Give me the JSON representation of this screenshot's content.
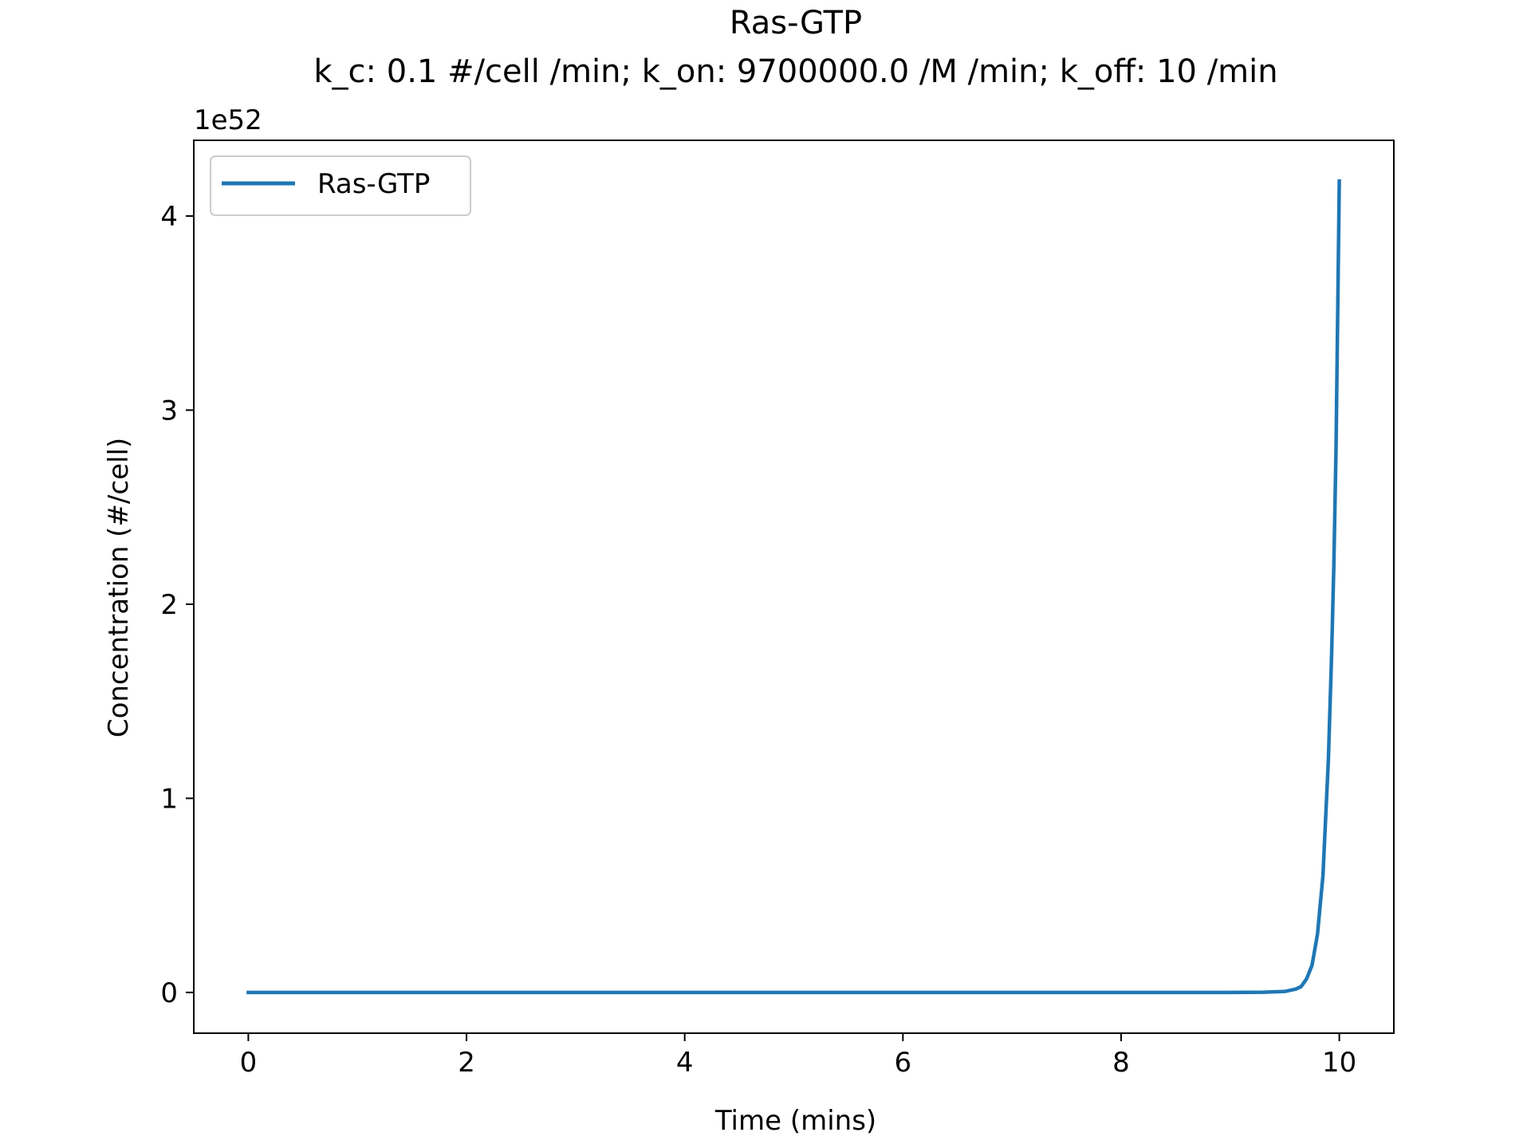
{
  "chart_data": {
    "type": "line",
    "title": "Ras-GTP",
    "subtitle": "k_c: 0.1 #/cell /min; k_on: 9700000.0 /M /min; k_off: 10 /min",
    "xlabel": "Time (mins)",
    "ylabel": "Concentration (#/cell)",
    "y_offset_label": "1e52",
    "xlim": [
      -0.5,
      10.5
    ],
    "ylim": [
      -0.21,
      4.39
    ],
    "x_ticks": [
      0,
      2,
      4,
      6,
      8,
      10
    ],
    "x_tick_labels": [
      "0",
      "2",
      "4",
      "6",
      "8",
      "10"
    ],
    "y_ticks": [
      0,
      1,
      2,
      3,
      4
    ],
    "y_tick_labels": [
      "0",
      "1",
      "2",
      "3",
      "4"
    ],
    "grid": false,
    "legend_position": "top-left",
    "series": [
      {
        "name": "Ras-GTP",
        "color": "#1f77b4",
        "x": [
          0,
          1,
          2,
          3,
          4,
          5,
          6,
          7,
          8,
          9,
          9.3,
          9.5,
          9.6,
          9.65,
          9.7,
          9.75,
          9.8,
          9.85,
          9.9,
          9.93,
          9.95,
          9.97,
          9.98,
          10.0
        ],
        "y": [
          0,
          0,
          0,
          0,
          0,
          0,
          0,
          0,
          0,
          0.0002,
          0.001,
          0.005,
          0.017,
          0.03,
          0.07,
          0.14,
          0.3,
          0.6,
          1.2,
          1.75,
          2.2,
          2.8,
          3.25,
          4.18
        ]
      }
    ]
  }
}
